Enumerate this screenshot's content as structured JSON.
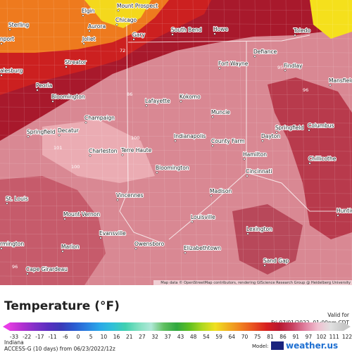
{
  "map": {
    "cities": [
      "Elgin",
      "Mount Prospect",
      "Sterling",
      "Aurora",
      "Chicago",
      "Joliet",
      "Gary",
      "South Bend",
      "Howe",
      "Toledo",
      "nport",
      "Streator",
      "Defiance",
      "Fort Wayne",
      "Findlay",
      "alesburg",
      "Peoria",
      "Mansfield",
      "Bloomington",
      "Lafayette",
      "Kokomo",
      "Champaign",
      "Muncie",
      "Columbus",
      "Springfield",
      "Decatur",
      "Springfield",
      "Indianapolis",
      "Dayton",
      "County Farm",
      "Charleston",
      "Terre Haute",
      "Hamilton",
      "Chillicothe",
      "Bloomington",
      "Cincinnati",
      "St. Louis",
      "Madison",
      "Vincennes",
      "Mount Vernon",
      "Louisville",
      "Huntin",
      "Lexington",
      "Evansville",
      "Owensboro",
      "Elizabethtown",
      "Marion",
      "rmington",
      "Sand Gap",
      "Cape Girardeau"
    ],
    "contour_labels": [
      72,
      86,
      95,
      96,
      101,
      100,
      100,
      96
    ],
    "attribution": "Map data © OpenStreetMap contributors, rendering GIScience Research Group @ Heidelberg University"
  },
  "legend": {
    "title": "Temperature (°F)",
    "ticks": [
      -33,
      -22,
      -17,
      -11,
      -6,
      0,
      5,
      10,
      16,
      21,
      27,
      32,
      37,
      43,
      48,
      54,
      59,
      64,
      70,
      75,
      81,
      86,
      91,
      97,
      102,
      111,
      122
    ]
  },
  "footer": {
    "valid_label": "Valid for",
    "valid_time": "Fri 07/01/2022, 01:00pm CDT",
    "region": "Indiana",
    "model_run": "ACCESS-G (10 days) from 06/23/2022/12z",
    "model_label": "Model:",
    "brand": "weather.us"
  }
}
